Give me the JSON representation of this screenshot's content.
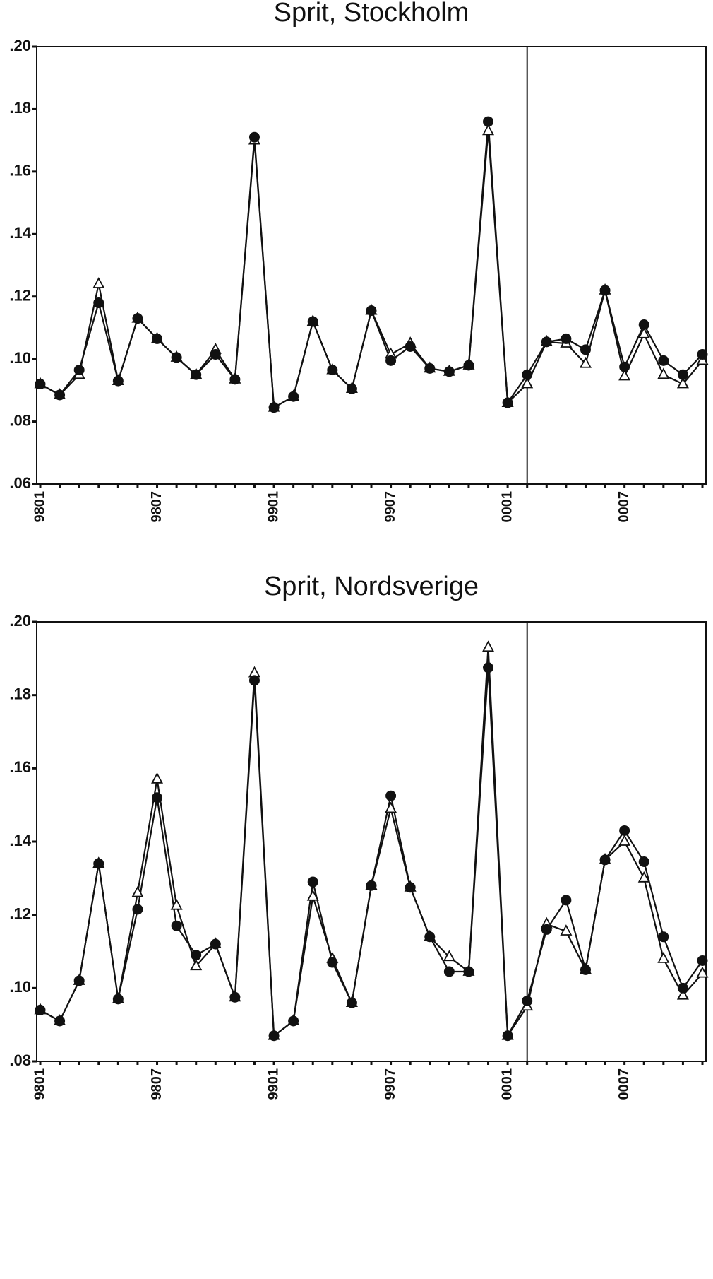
{
  "chart_data": [
    {
      "type": "line",
      "title": "Sprit, Stockholm",
      "categories": [
        "9801",
        null,
        null,
        null,
        null,
        null,
        "9807",
        null,
        null,
        null,
        null,
        null,
        "9901",
        null,
        null,
        null,
        null,
        null,
        "9907",
        null,
        null,
        null,
        null,
        null,
        "0001",
        null,
        null,
        null,
        null,
        null,
        "0007",
        null,
        null,
        null,
        null
      ],
      "divider_index": 25,
      "series": [
        {
          "color": "#111111",
          "marker": "triangle",
          "values": [
            0.092,
            0.0885,
            0.095,
            0.124,
            0.093,
            0.113,
            0.1065,
            0.1005,
            0.095,
            0.103,
            0.0935,
            0.17,
            0.0845,
            0.088,
            0.112,
            0.0965,
            0.0905,
            0.1155,
            0.1015,
            0.105,
            0.097,
            0.096,
            0.098,
            0.173,
            0.086,
            0.092,
            0.1055,
            0.105,
            0.0985,
            0.122,
            0.0945,
            0.108,
            0.095,
            0.092,
            0.0995
          ]
        },
        {
          "color": "#111111",
          "marker": "circle",
          "values": [
            0.092,
            0.0885,
            0.0965,
            0.118,
            0.093,
            0.113,
            0.1065,
            0.1005,
            0.095,
            0.1015,
            0.0935,
            0.171,
            0.0845,
            0.088,
            0.112,
            0.0965,
            0.0905,
            0.1155,
            0.0995,
            0.104,
            0.097,
            0.096,
            0.098,
            0.176,
            0.086,
            0.095,
            0.1055,
            0.1065,
            0.103,
            0.122,
            0.0975,
            0.111,
            0.0995,
            0.095,
            0.1015
          ]
        }
      ],
      "ylim": [
        0.06,
        0.2
      ],
      "yticks": [
        {
          "value": 0.06,
          "label": ".06"
        },
        {
          "value": 0.08,
          "label": ".08"
        },
        {
          "value": 0.1,
          "label": ".10"
        },
        {
          "value": 0.12,
          "label": ".12"
        },
        {
          "value": 0.14,
          "label": ".14"
        },
        {
          "value": 0.16,
          "label": ".16"
        },
        {
          "value": 0.18,
          "label": ".18"
        },
        {
          "value": 0.2,
          "label": ".20"
        }
      ]
    },
    {
      "type": "line",
      "title": "Sprit, Nordsverige",
      "categories": [
        "9801",
        null,
        null,
        null,
        null,
        null,
        "9807",
        null,
        null,
        null,
        null,
        null,
        "9901",
        null,
        null,
        null,
        null,
        null,
        "9907",
        null,
        null,
        null,
        null,
        null,
        "0001",
        null,
        null,
        null,
        null,
        null,
        "0007",
        null,
        null,
        null,
        null
      ],
      "divider_index": 25,
      "series": [
        {
          "color": "#111111",
          "marker": "triangle",
          "values": [
            0.094,
            0.091,
            0.102,
            0.134,
            0.097,
            0.126,
            0.157,
            0.1225,
            0.106,
            0.112,
            0.0975,
            0.186,
            0.087,
            0.091,
            0.125,
            0.108,
            0.096,
            0.128,
            0.149,
            0.1275,
            0.114,
            0.1085,
            0.1045,
            0.193,
            0.087,
            0.095,
            0.1175,
            0.1155,
            0.105,
            0.135,
            0.14,
            0.13,
            0.108,
            0.098,
            0.104
          ]
        },
        {
          "color": "#111111",
          "marker": "circle",
          "values": [
            0.094,
            0.091,
            0.102,
            0.134,
            0.097,
            0.1215,
            0.152,
            0.117,
            0.109,
            0.112,
            0.0975,
            0.184,
            0.087,
            0.091,
            0.129,
            0.107,
            0.096,
            0.128,
            0.1525,
            0.1275,
            0.114,
            0.1045,
            0.1045,
            0.1875,
            0.087,
            0.0965,
            0.116,
            0.124,
            0.105,
            0.135,
            0.143,
            0.1345,
            0.114,
            0.1,
            0.1075
          ]
        }
      ],
      "ylim": [
        0.08,
        0.2
      ],
      "yticks": [
        {
          "value": 0.08,
          "label": ".08"
        },
        {
          "value": 0.1,
          "label": ".10"
        },
        {
          "value": 0.12,
          "label": ".12"
        },
        {
          "value": 0.14,
          "label": ".14"
        },
        {
          "value": 0.16,
          "label": ".16"
        },
        {
          "value": 0.18,
          "label": ".18"
        },
        {
          "value": 0.2,
          "label": ".20"
        }
      ]
    }
  ]
}
